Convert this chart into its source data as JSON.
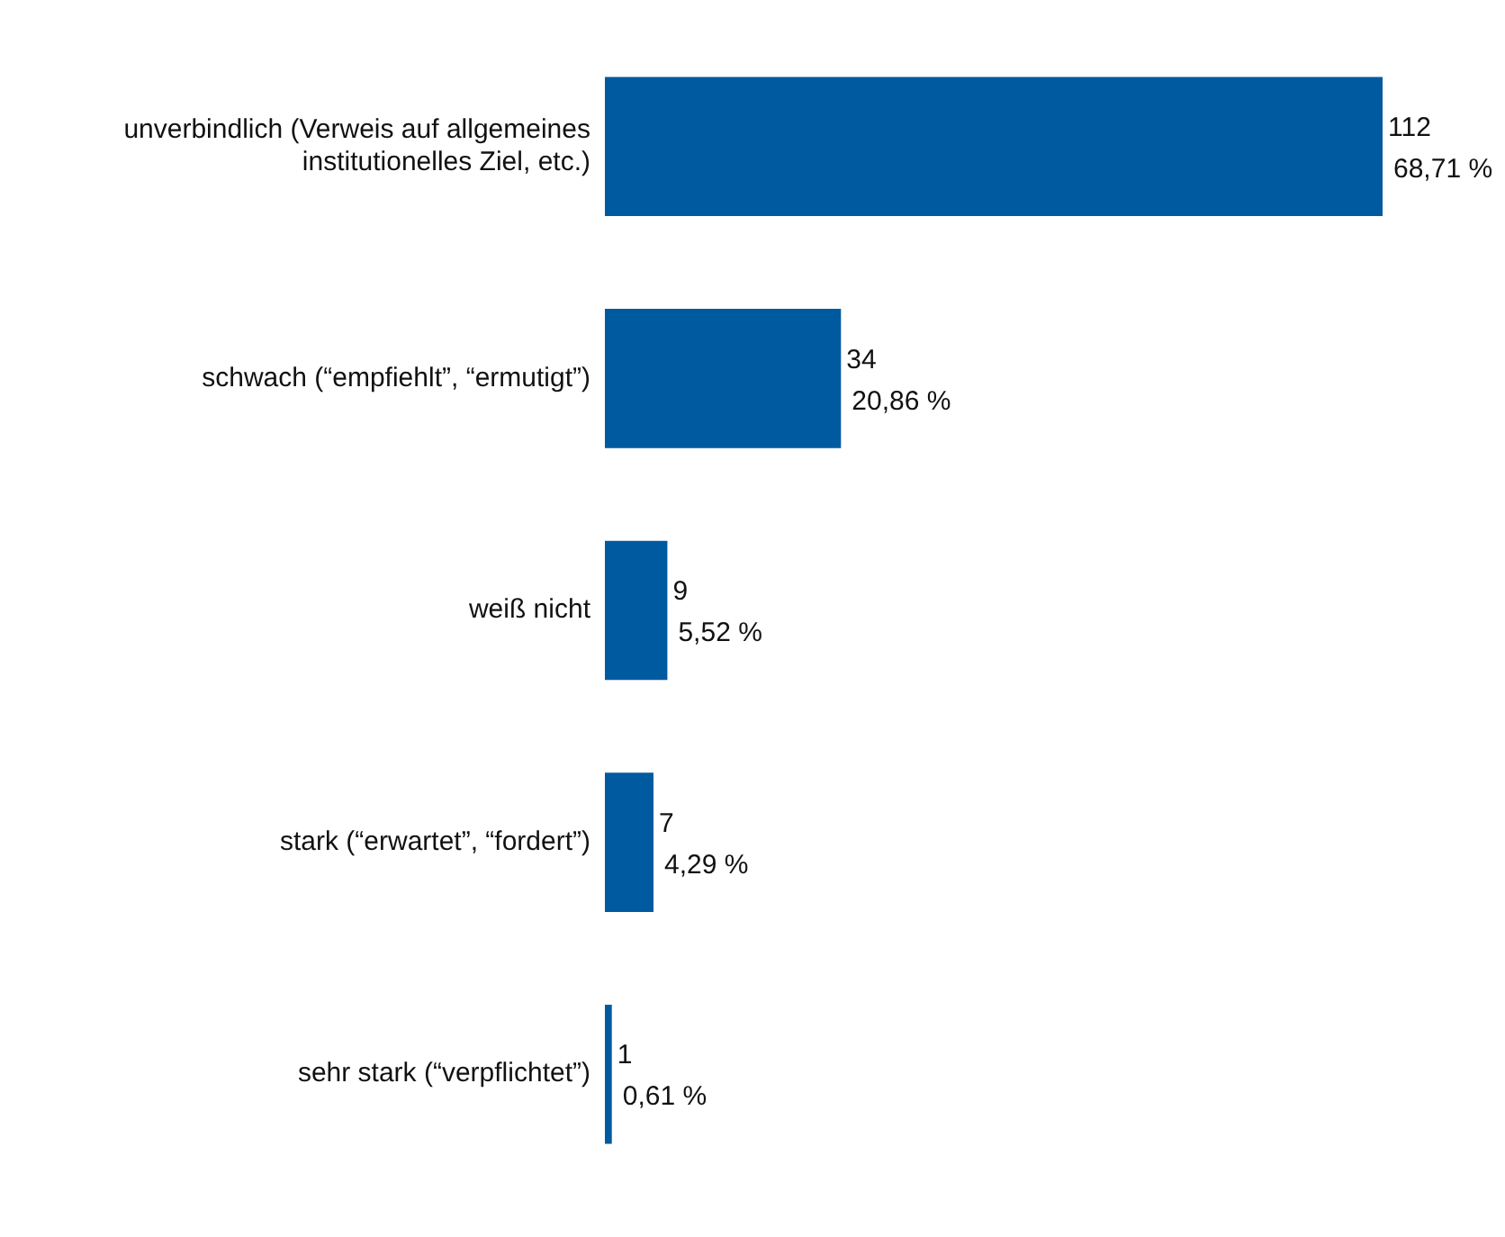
{
  "chart_data": {
    "type": "bar",
    "orientation": "horizontal",
    "categories": [
      "unverbindlich (Verweis auf allgemeines institutionelles Ziel, etc.)",
      "schwach (“empfiehlt”, “ermutigt”)",
      "weiß nicht",
      "stark (“erwartet”, “fordert”)",
      "sehr stark (“verpflichtet”)"
    ],
    "values": [
      112,
      34,
      9,
      7,
      1
    ],
    "color": "#005aa0",
    "value_labels": [
      "112\n68,71 %",
      "34\n20,86 %",
      "9\n5,52 %",
      "7\n4,29 %",
      "1\n0,61 %"
    ]
  }
}
